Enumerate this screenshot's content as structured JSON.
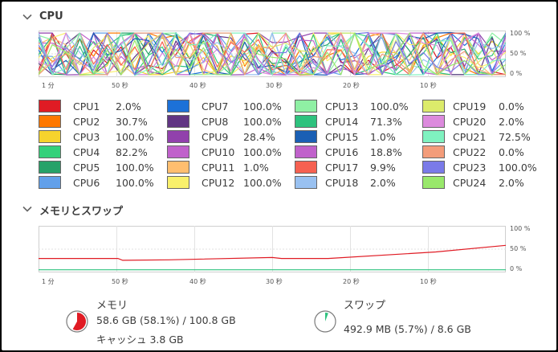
{
  "cpu_section": {
    "title": "CPU",
    "time_ticks": [
      "1 分",
      "50 秒",
      "40 秒",
      "30 秒",
      "20 秒",
      "10 秒"
    ],
    "percent_ticks": [
      "100 %",
      "50 %",
      "0 %"
    ],
    "cpus": [
      {
        "name": "CPU1",
        "value": "2.0%",
        "color": "#e01b24"
      },
      {
        "name": "CPU2",
        "value": "30.7%",
        "color": "#ff7800"
      },
      {
        "name": "CPU3",
        "value": "100.0%",
        "color": "#f6d32d"
      },
      {
        "name": "CPU4",
        "value": "82.2%",
        "color": "#33d17a"
      },
      {
        "name": "CPU5",
        "value": "100.0%",
        "color": "#26a269"
      },
      {
        "name": "CPU6",
        "value": "100.0%",
        "color": "#62a0ea"
      },
      {
        "name": "CPU7",
        "value": "100.0%",
        "color": "#1c71d8"
      },
      {
        "name": "CPU8",
        "value": "100.0%",
        "color": "#613583"
      },
      {
        "name": "CPU9",
        "value": "28.4%",
        "color": "#9141ac"
      },
      {
        "name": "CPU10",
        "value": "100.0%",
        "color": "#c061cb"
      },
      {
        "name": "CPU11",
        "value": "1.0%",
        "color": "#ffbe6f"
      },
      {
        "name": "CPU12",
        "value": "100.0%",
        "color": "#f9f06b"
      },
      {
        "name": "CPU13",
        "value": "100.0%",
        "color": "#8ff0a4"
      },
      {
        "name": "CPU14",
        "value": "71.3%",
        "color": "#2ec27e"
      },
      {
        "name": "CPU15",
        "value": "1.0%",
        "color": "#1a5fb4"
      },
      {
        "name": "CPU16",
        "value": "18.8%",
        "color": "#c061cb"
      },
      {
        "name": "CPU17",
        "value": "9.9%",
        "color": "#f66151"
      },
      {
        "name": "CPU18",
        "value": "2.0%",
        "color": "#99c1f1"
      },
      {
        "name": "CPU19",
        "value": "0.0%",
        "color": "#dceb6b"
      },
      {
        "name": "CPU20",
        "value": "2.0%",
        "color": "#dc8add"
      },
      {
        "name": "CPU21",
        "value": "72.5%",
        "color": "#7ff2c0"
      },
      {
        "name": "CPU22",
        "value": "0.0%",
        "color": "#f39c7a"
      },
      {
        "name": "CPU23",
        "value": "100.0%",
        "color": "#7a7ae8"
      },
      {
        "name": "CPU24",
        "value": "2.0%",
        "color": "#99e86b"
      }
    ]
  },
  "memory_section": {
    "title": "メモリとスワップ",
    "time_ticks": [
      "1 分",
      "50 秒",
      "40 秒",
      "30 秒",
      "20 秒",
      "10 秒"
    ],
    "percent_ticks": [
      "100 %",
      "50 %",
      "0 %"
    ],
    "memory": {
      "label": "メモリ",
      "usage": "58.6 GB (58.1%) / 100.8 GB",
      "cache": "キャッシュ 3.8 GB",
      "percent": 58.1,
      "color": "#e01b24"
    },
    "swap": {
      "label": "スワップ",
      "usage": "492.9 MB (5.7%) / 8.6 GB",
      "percent": 5.7,
      "color": "#2ec27e"
    }
  }
}
